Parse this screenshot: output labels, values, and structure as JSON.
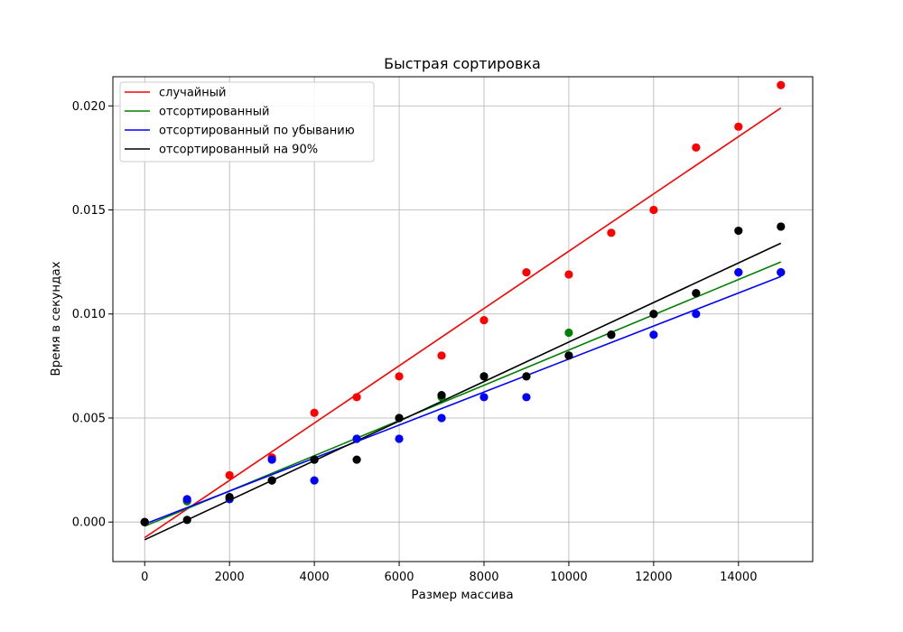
{
  "chart_data": {
    "type": "scatter",
    "title": "Быстрая сортировка",
    "xlabel": "Размер массива",
    "ylabel": "Время в секундах",
    "xlim": [
      -750,
      15750
    ],
    "ylim": [
      -0.0019,
      0.0214
    ],
    "xticks": [
      0,
      2000,
      4000,
      6000,
      8000,
      10000,
      12000,
      14000
    ],
    "xtick_labels": [
      "0",
      "2000",
      "4000",
      "6000",
      "8000",
      "10000",
      "12000",
      "14000"
    ],
    "yticks": [
      0.0,
      0.005,
      0.01,
      0.015,
      0.02
    ],
    "ytick_labels": [
      "0.000",
      "0.005",
      "0.010",
      "0.015",
      "0.020"
    ],
    "grid": true,
    "legend_position": "top-left",
    "x": [
      0,
      1000,
      2000,
      3000,
      4000,
      5000,
      6000,
      7000,
      8000,
      9000,
      10000,
      11000,
      12000,
      13000,
      14000,
      15000
    ],
    "series": [
      {
        "name": "случайный",
        "color": "#ff0000",
        "values": [
          0.0,
          0.001,
          0.00225,
          0.0031,
          0.00525,
          0.006,
          0.007,
          0.008,
          0.0097,
          0.012,
          0.0119,
          0.0139,
          0.015,
          0.018,
          0.019,
          0.021
        ],
        "fit": [
          -0.00075,
          0.0199
        ]
      },
      {
        "name": "отсортированный",
        "color": "#008000",
        "values": [
          0.0,
          0.001,
          0.0012,
          0.002,
          0.003,
          0.004,
          0.005,
          0.006,
          0.007,
          0.007,
          0.0091,
          0.009,
          0.01,
          0.011,
          0.012,
          0.012
        ],
        "fit": [
          -0.0002,
          0.0125
        ]
      },
      {
        "name": "отсортированный по убыванию",
        "color": "#0000ff",
        "values": [
          0.0,
          0.0011,
          0.0011,
          0.003,
          0.002,
          0.004,
          0.004,
          0.005,
          0.006,
          0.006,
          0.008,
          0.009,
          0.009,
          0.01,
          0.012,
          0.012
        ],
        "fit": [
          -0.0001,
          0.0118
        ]
      },
      {
        "name": "отсортированный на 90%",
        "color": "#000000",
        "values": [
          0.0,
          0.0001,
          0.0012,
          0.002,
          0.003,
          0.003,
          0.005,
          0.0061,
          0.007,
          0.007,
          0.008,
          0.009,
          0.01,
          0.011,
          0.014,
          0.0142
        ],
        "fit": [
          -0.00085,
          0.0134
        ]
      }
    ]
  }
}
